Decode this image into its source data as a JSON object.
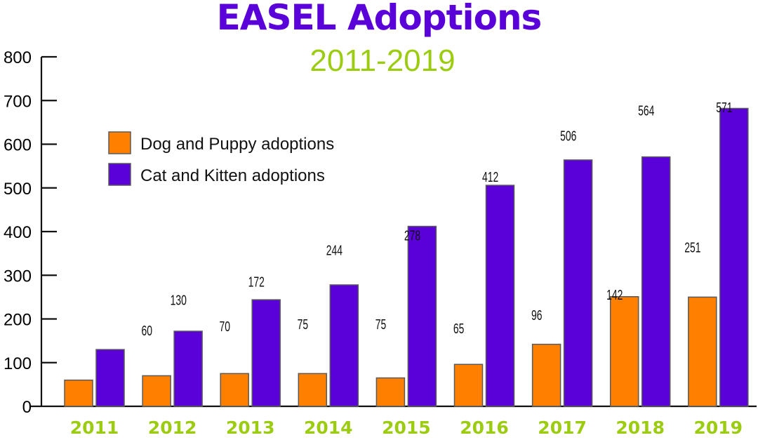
{
  "chart_data": {
    "type": "bar",
    "title": "EASEL Adoptions",
    "subtitle": "2011-2019",
    "xlabel": "",
    "ylabel": "",
    "categories": [
      "2011",
      "2012",
      "2013",
      "2014",
      "2015",
      "2016",
      "2017",
      "2018",
      "2019"
    ],
    "series": [
      {
        "name": "Dog and Puppy adoptions",
        "color": "#ff7f00",
        "values": [
          60,
          70,
          75,
          75,
          65,
          96,
          142,
          251,
          250
        ]
      },
      {
        "name": "Cat and Kitten adoptions",
        "color": "#5a00d8",
        "values": [
          130,
          172,
          244,
          278,
          412,
          506,
          564,
          571,
          682
        ]
      }
    ],
    "ylim": [
      0,
      800
    ],
    "yticks": [
      0,
      100,
      200,
      300,
      400,
      500,
      600,
      700,
      800
    ],
    "grid": false,
    "legend_position": "top-left",
    "data_labels": true
  }
}
